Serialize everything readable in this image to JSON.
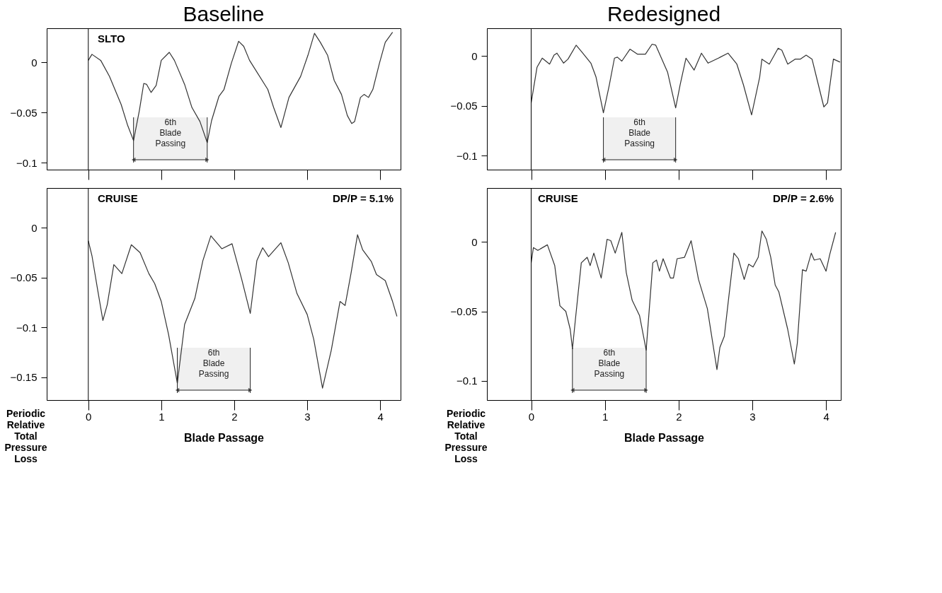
{
  "chart_data": [
    {
      "type": "line",
      "title": "Baseline",
      "x": [
        0,
        0.05,
        0.17,
        0.29,
        0.45,
        0.54,
        0.62,
        0.7,
        0.76,
        0.8,
        0.86,
        0.93,
        1.0,
        1.11,
        1.18,
        1.32,
        1.42,
        1.53,
        1.63,
        1.69,
        1.79,
        1.86,
        1.96,
        2.06,
        2.13,
        2.21,
        2.46,
        2.54,
        2.64,
        2.75,
        2.91,
        3.01,
        3.1,
        3.18,
        3.28,
        3.37,
        3.47,
        3.55,
        3.61,
        3.65,
        3.73,
        3.78,
        3.84,
        3.9,
        3.99,
        4.07,
        4.17
      ],
      "series": [
        {
          "color": "#333333",
          "values": [
            0.002,
            0.008,
            0.002,
            -0.014,
            -0.042,
            -0.063,
            -0.078,
            -0.048,
            -0.021,
            -0.022,
            -0.03,
            -0.023,
            0.002,
            0.01,
            0.002,
            -0.022,
            -0.045,
            -0.059,
            -0.08,
            -0.058,
            -0.034,
            -0.027,
            -0.001,
            0.021,
            0.016,
            0.002,
            -0.027,
            -0.045,
            -0.065,
            -0.035,
            -0.014,
            0.007,
            0.029,
            0.02,
            0.007,
            -0.018,
            -0.032,
            -0.053,
            -0.061,
            -0.059,
            -0.035,
            -0.032,
            -0.035,
            -0.027,
            -0.001,
            0.02,
            0.03
          ]
        }
      ],
      "xlim": [
        -0.57,
        4.28
      ],
      "ylim": [
        -0.107,
        0.034
      ],
      "xticks": [
        0,
        1,
        2,
        3,
        4
      ],
      "yticks": [
        0,
        -0.05,
        -0.1
      ],
      "tick_labels": "y",
      "grid": false,
      "annotations": [
        "SLTO"
      ],
      "ref_lines": [
        {
          "axis": "x",
          "value": 0
        }
      ],
      "bands": [
        {
          "axis": "x",
          "from": 0.62,
          "to": 1.63,
          "label": "6th Blade Passing"
        }
      ]
    },
    {
      "type": "line",
      "title": "Redesigned",
      "x": [
        0,
        0.08,
        0.15,
        0.25,
        0.31,
        0.35,
        0.44,
        0.5,
        0.61,
        0.69,
        0.81,
        0.88,
        0.98,
        1.06,
        1.13,
        1.17,
        1.23,
        1.34,
        1.44,
        1.55,
        1.64,
        1.69,
        1.85,
        1.96,
        2.02,
        2.1,
        2.21,
        2.31,
        2.4,
        2.54,
        2.67,
        2.79,
        2.88,
        2.99,
        3.1,
        3.13,
        3.23,
        3.35,
        3.4,
        3.48,
        3.58,
        3.65,
        3.73,
        3.81,
        3.88,
        3.97,
        4.02,
        4.1,
        4.19
      ],
      "series": [
        {
          "color": "#333333",
          "values": [
            -0.047,
            -0.011,
            -0.002,
            -0.008,
            0.001,
            0.003,
            -0.007,
            -0.003,
            0.011,
            0.004,
            -0.007,
            -0.021,
            -0.057,
            -0.029,
            -0.002,
            -0.001,
            -0.005,
            0.007,
            0.002,
            0.002,
            0.012,
            0.011,
            -0.016,
            -0.052,
            -0.029,
            -0.002,
            -0.014,
            0.003,
            -0.007,
            -0.002,
            0.003,
            -0.008,
            -0.029,
            -0.059,
            -0.021,
            -0.003,
            -0.008,
            0.008,
            0.006,
            -0.008,
            -0.003,
            -0.003,
            0.001,
            -0.003,
            -0.024,
            -0.051,
            -0.047,
            -0.003,
            -0.006
          ]
        }
      ],
      "xlim": [
        -0.6,
        4.2
      ],
      "ylim": [
        -0.114,
        0.028
      ],
      "xticks": [
        0,
        1,
        2,
        3,
        4
      ],
      "yticks": [
        0,
        -0.05,
        -0.1
      ],
      "tick_labels": "y",
      "grid": false,
      "ref_lines": [
        {
          "axis": "x",
          "value": 0
        }
      ],
      "bands": [
        {
          "axis": "x",
          "from": 0.98,
          "to": 1.96,
          "label": "6th Blade Passing"
        }
      ]
    },
    {
      "type": "line",
      "x": [
        0,
        0.05,
        0.13,
        0.2,
        0.26,
        0.35,
        0.46,
        0.59,
        0.71,
        0.83,
        0.91,
        1.0,
        1.1,
        1.22,
        1.32,
        1.46,
        1.57,
        1.68,
        1.83,
        1.97,
        2.1,
        2.22,
        2.31,
        2.39,
        2.47,
        2.64,
        2.74,
        2.86,
        3.0,
        3.09,
        3.21,
        3.33,
        3.45,
        3.52,
        3.6,
        3.69,
        3.76,
        3.88,
        3.95,
        4.07,
        4.17,
        4.23
      ],
      "series": [
        {
          "color": "#333333",
          "values": [
            -0.013,
            -0.028,
            -0.063,
            -0.093,
            -0.077,
            -0.037,
            -0.046,
            -0.017,
            -0.025,
            -0.046,
            -0.056,
            -0.074,
            -0.107,
            -0.156,
            -0.097,
            -0.071,
            -0.033,
            -0.008,
            -0.021,
            -0.016,
            -0.051,
            -0.086,
            -0.033,
            -0.02,
            -0.029,
            -0.015,
            -0.035,
            -0.066,
            -0.087,
            -0.112,
            -0.161,
            -0.123,
            -0.074,
            -0.078,
            -0.046,
            -0.007,
            -0.022,
            -0.034,
            -0.047,
            -0.053,
            -0.074,
            -0.089
          ]
        }
      ],
      "xlim": [
        -0.57,
        4.28
      ],
      "ylim": [
        -0.173,
        0.04
      ],
      "xticks": [
        0,
        1,
        2,
        3,
        4
      ],
      "yticks": [
        0,
        -0.05,
        -0.1,
        -0.15
      ],
      "grid": false,
      "xlabel": "Blade Passage",
      "ylabel": "Periodic Relative Total Pressure Loss",
      "annotations": [
        "CRUISE",
        "DP/P = 5.1%"
      ],
      "ref_lines": [
        {
          "axis": "x",
          "value": 0
        }
      ],
      "bands": [
        {
          "axis": "x",
          "from": 1.22,
          "to": 2.22,
          "label": "6th Blade Passing"
        }
      ]
    },
    {
      "type": "line",
      "x": [
        0,
        0.03,
        0.09,
        0.22,
        0.32,
        0.39,
        0.47,
        0.53,
        0.56,
        0.6,
        0.68,
        0.76,
        0.8,
        0.85,
        0.95,
        1.03,
        1.08,
        1.14,
        1.23,
        1.29,
        1.37,
        1.47,
        1.56,
        1.65,
        1.7,
        1.74,
        1.79,
        1.89,
        1.93,
        1.98,
        2.08,
        2.17,
        2.27,
        2.39,
        2.52,
        2.56,
        2.62,
        2.68,
        2.75,
        2.81,
        2.89,
        2.95,
        3.01,
        3.08,
        3.13,
        3.19,
        3.25,
        3.31,
        3.36,
        3.48,
        3.57,
        3.61,
        3.68,
        3.73,
        3.8,
        3.84,
        3.92,
        4.0,
        4.05,
        4.13
      ],
      "series": [
        {
          "color": "#333333",
          "values": [
            -0.015,
            -0.004,
            -0.006,
            -0.002,
            -0.017,
            -0.046,
            -0.05,
            -0.063,
            -0.077,
            -0.056,
            -0.015,
            -0.011,
            -0.017,
            -0.008,
            -0.026,
            0.002,
            0.001,
            -0.008,
            0.007,
            -0.022,
            -0.042,
            -0.053,
            -0.078,
            -0.015,
            -0.013,
            -0.021,
            -0.012,
            -0.026,
            -0.026,
            -0.012,
            -0.011,
            0.001,
            -0.027,
            -0.048,
            -0.092,
            -0.076,
            -0.068,
            -0.04,
            -0.008,
            -0.012,
            -0.027,
            -0.016,
            -0.018,
            -0.011,
            0.008,
            0.002,
            -0.011,
            -0.031,
            -0.036,
            -0.063,
            -0.088,
            -0.073,
            -0.02,
            -0.021,
            -0.008,
            -0.013,
            -0.012,
            -0.021,
            -0.009,
            0.007
          ]
        }
      ],
      "xlim": [
        -0.6,
        4.2
      ],
      "ylim": [
        -0.114,
        0.039
      ],
      "xticks": [
        0,
        1,
        2,
        3,
        4
      ],
      "yticks": [
        0,
        -0.05,
        -0.1
      ],
      "grid": false,
      "xlabel": "Blade Passage",
      "ylabel": "Periodic Relative Total Pressure Loss",
      "annotations": [
        "CRUISE",
        "DP/P = 2.6%"
      ],
      "ref_lines": [
        {
          "axis": "x",
          "value": 0
        }
      ],
      "bands": [
        {
          "axis": "x",
          "from": 0.56,
          "to": 1.56,
          "label": "6th Blade Passing"
        }
      ]
    }
  ]
}
